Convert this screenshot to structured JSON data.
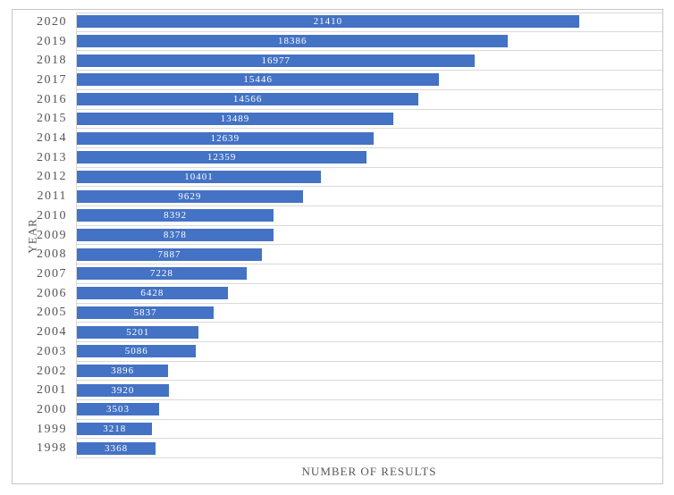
{
  "chart_data": {
    "type": "bar",
    "orientation": "horizontal",
    "title": "",
    "xlabel": "NUMBER OF RESULTS",
    "ylabel": "YEAR",
    "categories": [
      "2020",
      "2019",
      "2018",
      "2017",
      "2016",
      "2015",
      "2014",
      "2013",
      "2012",
      "2011",
      "2010",
      "2009",
      "2008",
      "2007",
      "2006",
      "2005",
      "2004",
      "2003",
      "2002",
      "2001",
      "2000",
      "1999",
      "1998"
    ],
    "values": [
      21410,
      18386,
      16977,
      15446,
      14566,
      13489,
      12639,
      12359,
      10401,
      9629,
      8392,
      8378,
      7887,
      7228,
      6428,
      5837,
      5201,
      5086,
      3896,
      3920,
      3503,
      3218,
      3368
    ],
    "xlim": [
      0,
      25000
    ],
    "grid": "horizontal category separator lines",
    "legend": false,
    "value_label_position": "center",
    "colors": {
      "bar": "#4472C4",
      "value_label": "#FFFFFF",
      "gridline": "#D9D9D9",
      "axis_line": "#D9D9D9",
      "tick_label": "#555555",
      "axis_title": "#585858",
      "figure_border": "#C6C6C6",
      "background": "#FFFFFF"
    }
  }
}
